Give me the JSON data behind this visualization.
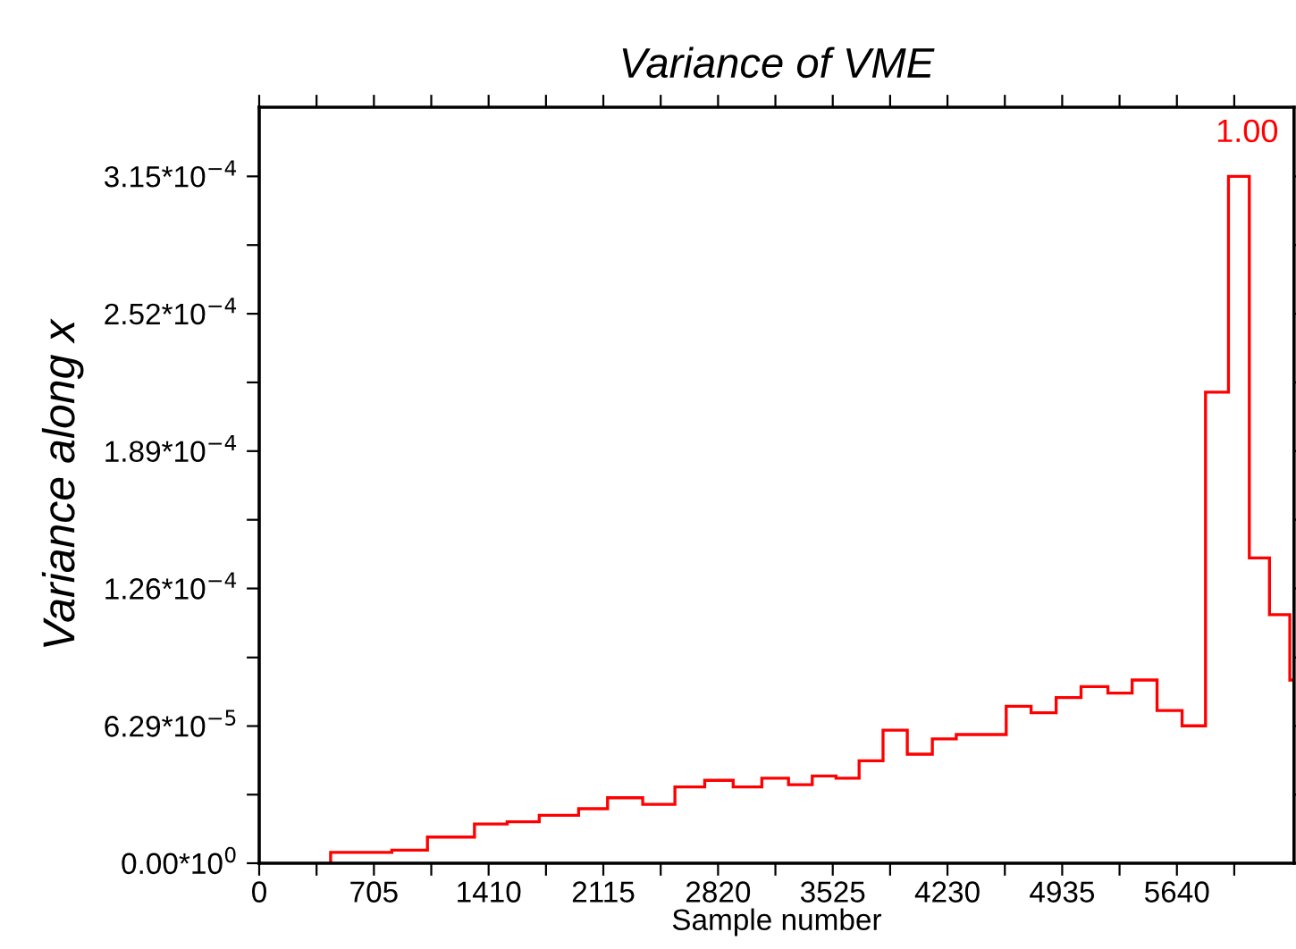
{
  "chart_data": {
    "type": "histogram",
    "title": "Variance of VME",
    "xlabel": "Sample number",
    "ylabel": "Variance along x",
    "bins": [
      439,
      815,
      1034,
      1323,
      1524,
      1721,
      1963,
      2141,
      2357,
      2555,
      2738,
      2913,
      3089,
      3253,
      3399,
      3545,
      3687,
      3834,
      3983,
      4137,
      4284,
      4591,
      4744,
      4898,
      5051,
      5216,
      5365,
      5518,
      5672,
      5816,
      5957,
      6085,
      6209,
      6334,
      6360
    ],
    "values": [
      5e-06,
      6e-06,
      1.2e-05,
      1.8e-05,
      1.9e-05,
      2.2e-05,
      2.5e-05,
      3e-05,
      2.7e-05,
      3.5e-05,
      3.8e-05,
      3.5e-05,
      3.9e-05,
      3.6e-05,
      4e-05,
      3.9e-05,
      4.7e-05,
      6.1e-05,
      5e-05,
      5.7e-05,
      5.9e-05,
      7.2e-05,
      6.9e-05,
      7.6e-05,
      8.1e-05,
      7.8e-05,
      8.4e-05,
      7e-05,
      6.3e-05,
      0.000216,
      0.000315,
      0.00014,
      0.000114,
      8.4e-05
    ],
    "color": "#ff0000",
    "annotations": [
      "1.00"
    ],
    "xlim": [
      0,
      6360
    ],
    "ylim": [
      0,
      0.0003467
    ],
    "xticks": [
      0,
      {
        "value": 352.5,
        "label": null
      },
      705,
      {
        "value": 1057.5,
        "label": null
      },
      1410,
      {
        "value": 1762.5,
        "label": null
      },
      2115,
      {
        "value": 2467.5,
        "label": null
      },
      2820,
      {
        "value": 3172.5,
        "label": null
      },
      3525,
      {
        "value": 3877.5,
        "label": null
      },
      4230,
      {
        "value": 4582.5,
        "label": null
      },
      4935,
      {
        "value": 5287.5,
        "label": null
      },
      5640,
      {
        "value": 5992.5,
        "label": null
      }
    ],
    "yticks": [
      {
        "value": 0,
        "label": "0.00*10$^{0}$"
      },
      {
        "value": 3.145e-05,
        "label": null
      },
      {
        "value": 6.29e-05,
        "label": "6.29*10$^{−5}$"
      },
      {
        "value": 9.435e-05,
        "label": null
      },
      {
        "value": 0.000126,
        "label": "1.26*10$^{−4}$"
      },
      {
        "value": 0.0001575,
        "label": null
      },
      {
        "value": 0.000189,
        "label": "1.89*10$^{−4}$"
      },
      {
        "value": 0.0002205,
        "label": null
      },
      {
        "value": 0.000252,
        "label": "2.52*10$^{−4}$"
      },
      {
        "value": 0.0002835,
        "label": null
      },
      {
        "value": 0.000315,
        "label": "3.15*10$^{−4}$"
      }
    ],
    "grid": false,
    "legend": false
  }
}
